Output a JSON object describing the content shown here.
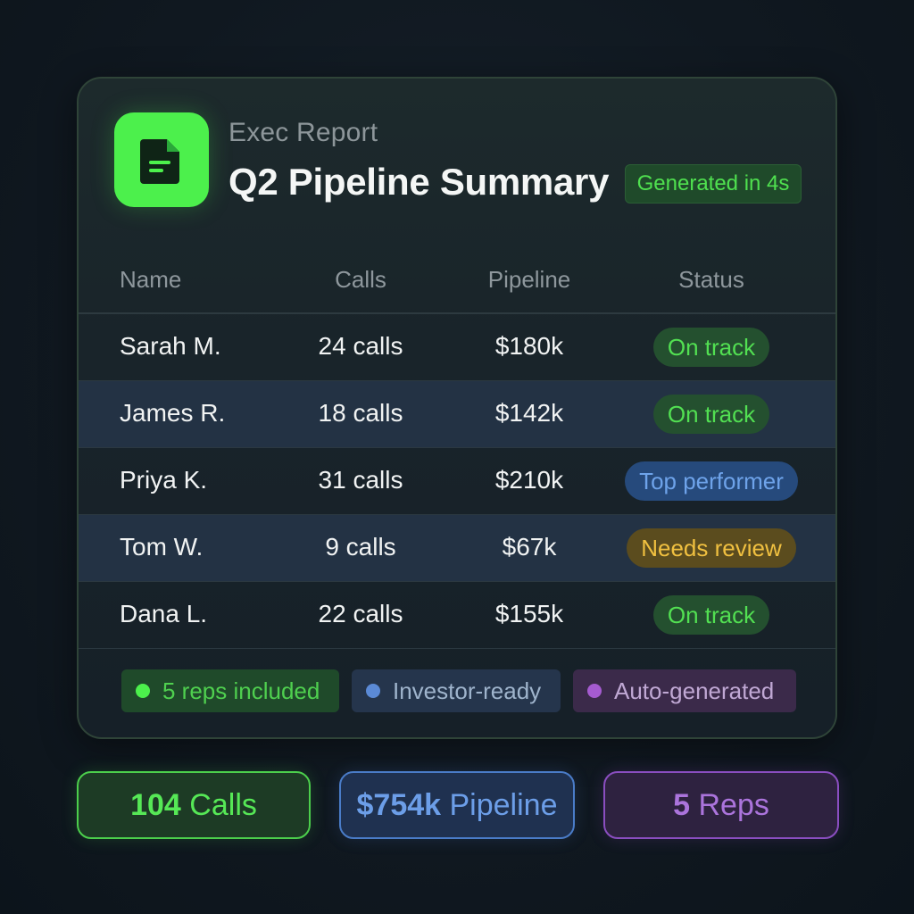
{
  "header": {
    "icon": "document-icon",
    "eyebrow": "Exec Report",
    "title": "Q2 Pipeline Summary",
    "badge": "Generated in 4s"
  },
  "table": {
    "columns": [
      "Name",
      "Calls",
      "Pipeline",
      "Status"
    ],
    "rows": [
      {
        "name": "Sarah M.",
        "calls": "24 calls",
        "pipeline": "$180k",
        "status": "On track",
        "status_color": "green"
      },
      {
        "name": "James R.",
        "calls": "18 calls",
        "pipeline": "$142k",
        "status": "On track",
        "status_color": "green"
      },
      {
        "name": "Priya K.",
        "calls": "31 calls",
        "pipeline": "$210k",
        "status": "Top performer",
        "status_color": "blue"
      },
      {
        "name": "Tom W.",
        "calls": "9 calls",
        "pipeline": "$67k",
        "status": "Needs review",
        "status_color": "yellow"
      },
      {
        "name": "Dana L.",
        "calls": "22 calls",
        "pipeline": "$155k",
        "status": "On track",
        "status_color": "green"
      }
    ]
  },
  "tags": [
    {
      "label": "5 reps included",
      "color": "#4cf04c"
    },
    {
      "label": "Investor-ready",
      "color": "#5b8ad6"
    },
    {
      "label": "Auto-generated",
      "color": "#a55bd0"
    }
  ],
  "stats": [
    {
      "value": "104",
      "label": "Calls",
      "color": "#56e856"
    },
    {
      "value": "$754k",
      "label": "Pipeline",
      "color": "#6c9ee8"
    },
    {
      "value": "5",
      "label": "Reps",
      "color": "#ab74dc"
    }
  ],
  "colors": {
    "accent_green": "#4cf04c",
    "accent_blue": "#5b8ad6",
    "accent_yellow": "#f0c040",
    "accent_purple": "#a55bd0",
    "background": "#0f1820"
  }
}
